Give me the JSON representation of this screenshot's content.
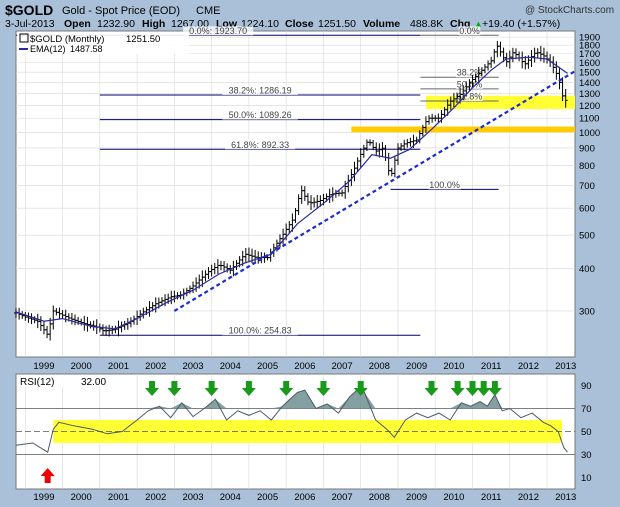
{
  "header": {
    "symbol": "$GOLD",
    "name": "Gold - Spot Price (EOD)",
    "exchange": "CME",
    "watermark": "@ StockCharts.com",
    "date": "3-Jul-2013",
    "open_label": "Open",
    "open": "1232.90",
    "high_label": "High",
    "high": "1267.00",
    "low_label": "Low",
    "low": "1224.10",
    "close_label": "Close",
    "close": "1251.50",
    "volume_label": "Volume",
    "volume": "488.8K",
    "chg_label": "Chg",
    "chg": "+19.40 (+1.57%)",
    "chg_arrow": "▲"
  },
  "colors": {
    "page_bg": "#a9c0d8",
    "plot_bg": "#ffffff",
    "grid": "#d8d8d8",
    "bars": "#000000",
    "ema": "#2a2aa0",
    "trend": "#1a2ccc",
    "fib_lines": "#000066",
    "zone_yellow": "#ffff33",
    "zone_orange": "#ffcc00",
    "rsi_line": "#4a5a6a",
    "rsi_fill": "#6f8f8f",
    "arrow_green": "#1a9a1a",
    "arrow_red": "#ee0000",
    "up": "#00aa00"
  },
  "chart_data": [
    {
      "type": "ohlc",
      "title": "$GOLD (Monthly) 1251.50",
      "legend": [
        {
          "label": "$GOLD (Monthly)",
          "value": "1251.50"
        },
        {
          "label": "EMA(12)",
          "value": "1487.58"
        }
      ],
      "scale": "log",
      "ylim": [
        220,
        1980
      ],
      "y_ticks": [
        300,
        400,
        500,
        600,
        700,
        800,
        900,
        1000,
        1100,
        1200,
        1300,
        1400,
        1500,
        1600,
        1700,
        1800,
        1900
      ],
      "x_ticks": [
        "1999",
        "2000",
        "2001",
        "2002",
        "2003",
        "2004",
        "2005",
        "2006",
        "2007",
        "2008",
        "2009",
        "2010",
        "2011",
        "2012",
        "2013"
      ],
      "x_range": [
        1998.75,
        2013.75
      ],
      "close_path": [
        [
          1998.75,
          296
        ],
        [
          1999.0,
          288
        ],
        [
          1999.33,
          280
        ],
        [
          1999.6,
          255
        ],
        [
          1999.75,
          300
        ],
        [
          1999.9,
          295
        ],
        [
          2000.2,
          285
        ],
        [
          2000.6,
          275
        ],
        [
          2000.9,
          270
        ],
        [
          2001.1,
          262
        ],
        [
          2001.4,
          265
        ],
        [
          2001.8,
          278
        ],
        [
          2002.2,
          300
        ],
        [
          2002.5,
          315
        ],
        [
          2002.9,
          330
        ],
        [
          2003.2,
          335
        ],
        [
          2003.5,
          355
        ],
        [
          2003.9,
          390
        ],
        [
          2004.2,
          410
        ],
        [
          2004.5,
          395
        ],
        [
          2004.9,
          440
        ],
        [
          2005.2,
          430
        ],
        [
          2005.5,
          430
        ],
        [
          2005.9,
          500
        ],
        [
          2006.2,
          560
        ],
        [
          2006.4,
          680
        ],
        [
          2006.6,
          620
        ],
        [
          2006.9,
          630
        ],
        [
          2007.2,
          660
        ],
        [
          2007.5,
          665
        ],
        [
          2007.8,
          770
        ],
        [
          2007.95,
          840
        ],
        [
          2008.2,
          950
        ],
        [
          2008.4,
          880
        ],
        [
          2008.6,
          900
        ],
        [
          2008.8,
          730
        ],
        [
          2009.0,
          900
        ],
        [
          2009.2,
          930
        ],
        [
          2009.5,
          950
        ],
        [
          2009.8,
          1100
        ],
        [
          2010.1,
          1100
        ],
        [
          2010.4,
          1230
        ],
        [
          2010.7,
          1300
        ],
        [
          2010.95,
          1410
        ],
        [
          2011.2,
          1500
        ],
        [
          2011.5,
          1620
        ],
        [
          2011.65,
          1800
        ],
        [
          2011.9,
          1600
        ],
        [
          2012.1,
          1720
        ],
        [
          2012.4,
          1580
        ],
        [
          2012.7,
          1720
        ],
        [
          2012.9,
          1680
        ],
        [
          2013.1,
          1600
        ],
        [
          2013.3,
          1450
        ],
        [
          2013.45,
          1230
        ],
        [
          2013.55,
          1251.5
        ]
      ],
      "ema12_path": [
        [
          1998.75,
          298
        ],
        [
          1999.5,
          280
        ],
        [
          2000.0,
          285
        ],
        [
          2000.8,
          270
        ],
        [
          2001.4,
          266
        ],
        [
          2002.0,
          285
        ],
        [
          2002.8,
          318
        ],
        [
          2003.5,
          345
        ],
        [
          2004.2,
          385
        ],
        [
          2004.9,
          415
        ],
        [
          2005.6,
          440
        ],
        [
          2006.3,
          540
        ],
        [
          2007.0,
          620
        ],
        [
          2007.7,
          720
        ],
        [
          2008.3,
          860
        ],
        [
          2008.8,
          840
        ],
        [
          2009.3,
          890
        ],
        [
          2009.9,
          1020
        ],
        [
          2010.5,
          1180
        ],
        [
          2011.0,
          1350
        ],
        [
          2011.5,
          1520
        ],
        [
          2011.9,
          1640
        ],
        [
          2012.5,
          1660
        ],
        [
          2013.0,
          1640
        ],
        [
          2013.55,
          1487.58
        ]
      ],
      "trendline": {
        "from": [
          2003.0,
          300
        ],
        "to": [
          2013.75,
          1510
        ],
        "style": "dashed"
      },
      "zones": [
        {
          "color": "yellow",
          "x": [
            2009.75,
            2013.75
          ],
          "y": [
            1170,
            1280
          ]
        },
        {
          "color": "orange",
          "x": [
            2007.75,
            2013.75
          ],
          "y": [
            1000,
            1040
          ]
        }
      ],
      "fib_levels": [
        {
          "label": "0.0%: 1923.70",
          "y": 1923.7,
          "x": [
            1998.75,
            2009.6
          ]
        },
        {
          "label": "38.2%: 1286.19",
          "y": 1286.19,
          "x": [
            2001.0,
            2009.6
          ]
        },
        {
          "label": "50.0%: 1089.26",
          "y": 1089.26,
          "x": [
            2001.0,
            2009.6
          ]
        },
        {
          "label": "61.8%: 892.33",
          "y": 892.33,
          "x": [
            2001.0,
            2009.6
          ]
        },
        {
          "label": "100.0%: 254.83",
          "y": 254.83,
          "x": [
            2001.0,
            2009.6
          ]
        },
        {
          "label": "0.0%",
          "y": 1923.7,
          "x": [
            2009.6,
            2011.7
          ]
        },
        {
          "label": "38.2%",
          "y": 1450,
          "x": [
            2009.6,
            2011.7
          ]
        },
        {
          "label": "50.0%",
          "y": 1340,
          "x": [
            2009.6,
            2011.7
          ]
        },
        {
          "label": "61.8%",
          "y": 1235,
          "x": [
            2009.6,
            2011.7
          ]
        },
        {
          "label": "100.0%",
          "y": 681,
          "x": [
            2008.8,
            2011.7
          ]
        }
      ]
    },
    {
      "type": "line",
      "title": "RSI(12) 32.00",
      "legend": [
        {
          "label": "RSI(12)",
          "value": "32.00"
        }
      ],
      "ylim": [
        0,
        100
      ],
      "y_ticks": [
        10,
        30,
        50,
        70,
        90
      ],
      "reference_lines": [
        30,
        50,
        70
      ],
      "yellow_band": {
        "x": [
          1999.75,
          2013.4
        ],
        "y": [
          40,
          60
        ]
      },
      "x": [
        1998.75,
        1999.2,
        1999.6,
        1999.75,
        1999.9,
        2000.3,
        2000.8,
        2001.2,
        2001.6,
        2002.0,
        2002.3,
        2002.6,
        2002.9,
        2003.2,
        2003.5,
        2003.8,
        2004.1,
        2004.4,
        2004.7,
        2005.0,
        2005.3,
        2005.6,
        2005.9,
        2006.1,
        2006.3,
        2006.5,
        2006.8,
        2007.1,
        2007.4,
        2007.7,
        2007.9,
        2008.1,
        2008.4,
        2008.7,
        2008.9,
        2009.2,
        2009.5,
        2009.8,
        2010.1,
        2010.4,
        2010.7,
        2010.95,
        2011.2,
        2011.4,
        2011.6,
        2011.8,
        2012.0,
        2012.3,
        2012.6,
        2012.9,
        2013.1,
        2013.3,
        2013.45,
        2013.55
      ],
      "y": [
        38,
        40,
        32,
        52,
        58,
        55,
        52,
        48,
        50,
        60,
        68,
        72,
        62,
        75,
        63,
        70,
        78,
        60,
        68,
        64,
        68,
        60,
        72,
        78,
        84,
        86,
        70,
        74,
        66,
        80,
        86,
        84,
        60,
        52,
        45,
        60,
        66,
        62,
        66,
        60,
        75,
        72,
        76,
        72,
        82,
        68,
        70,
        62,
        66,
        58,
        55,
        50,
        36,
        32
      ],
      "arrows_down": [
        2002.4,
        2003.0,
        2004.0,
        2005.0,
        2006.0,
        2007.0,
        2008.0,
        2009.9,
        2010.6,
        2011.0,
        2011.3,
        2011.6
      ],
      "arrows_up": [
        1999.6
      ]
    }
  ]
}
